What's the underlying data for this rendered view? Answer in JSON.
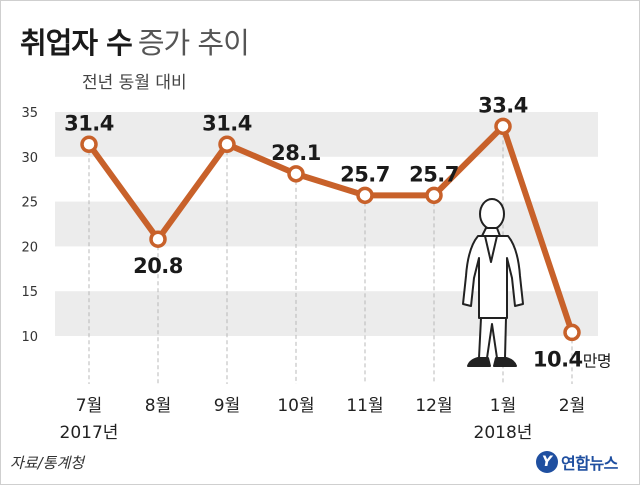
{
  "title": {
    "bold": "취업자 수",
    "light": "증가 추이"
  },
  "subtitle": "전년 동월 대비",
  "source": "자료/통계청",
  "logo": {
    "mark": "Y",
    "text": "연합뉴스"
  },
  "colors": {
    "line": "#c8612a",
    "band": "#ececec",
    "marker_fill": "#ffffff"
  },
  "icons": [
    "person-illustration"
  ],
  "chart_data": {
    "type": "line",
    "categories": [
      "7월",
      "8월",
      "9월",
      "10월",
      "11월",
      "12월",
      "1월",
      "2월"
    ],
    "year_labels": [
      "2017년",
      "",
      "",
      "",
      "",
      "",
      "2018년",
      ""
    ],
    "values": [
      31.4,
      20.8,
      31.4,
      28.1,
      25.7,
      25.7,
      33.4,
      10.4
    ],
    "data_labels": [
      "31.4",
      "20.8",
      "31.4",
      "28.1",
      "25.7",
      "25.7",
      "33.4",
      "10.4"
    ],
    "last_label_unit": "만명",
    "yticks": [
      10,
      15,
      20,
      25,
      30,
      35
    ],
    "ylim": [
      10,
      35
    ],
    "grid": false,
    "bands": true
  }
}
